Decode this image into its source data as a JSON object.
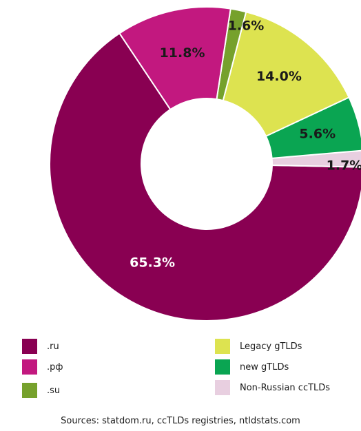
{
  "chart_data": {
    "type": "pie",
    "donut": true,
    "categories": [
      ".ru",
      "Non-Russian ccTLDs",
      "new gTLDs",
      "Legacy gTLDs",
      ".su",
      ".рф"
    ],
    "values": [
      65.3,
      1.7,
      5.6,
      14.0,
      1.6,
      11.8
    ],
    "data_labels": [
      "65.3%",
      "1.7%",
      "5.6%",
      "14.0%",
      "1.6%",
      "11.8%"
    ],
    "colors": [
      "#890052",
      "#e8cfe0",
      "#0aa552",
      "#dde350",
      "#76a12c",
      "#c2187f"
    ],
    "label_colors": [
      "#ffffff",
      "#1a1a1a",
      "#1a1a1a",
      "#1a1a1a",
      "#1a1a1a",
      "#1a1a1a"
    ],
    "legend_placement": "bottom",
    "legend": [
      {
        "label": ".ru",
        "color": "#890052"
      },
      {
        "label": ".рф",
        "color": "#c2187f"
      },
      {
        "label": ".su",
        "color": "#76a12c"
      },
      {
        "label": "Legacy gTLDs",
        "color": "#dde350"
      },
      {
        "label": "new gTLDs",
        "color": "#0aa552"
      },
      {
        "label": "Non-Russian ccTLDs",
        "color": "#e8cfe0"
      }
    ]
  },
  "source_note": "Sources: statdom.ru, ccTLDs registries, ntldstats.com"
}
